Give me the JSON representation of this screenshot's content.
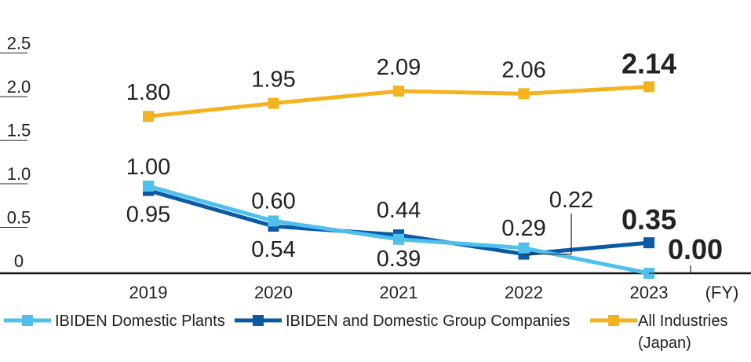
{
  "chart_data": {
    "type": "line",
    "categories": [
      "2019",
      "2020",
      "2021",
      "2022",
      "2023"
    ],
    "x_unit": "(FY)",
    "ylim": [
      0,
      2.5
    ],
    "yticks": [
      "0",
      "0.5",
      "1.0",
      "1.5",
      "2.0",
      "2.5"
    ],
    "grid": false,
    "legend_position": "bottom",
    "series": [
      {
        "name": "IBIDEN Domestic Plants",
        "color": "#4fc0ee",
        "values": [
          1.0,
          0.6,
          0.39,
          0.29,
          0.0
        ],
        "labels": [
          "1.00",
          "0.60",
          "0.39",
          "0.29",
          "0.00"
        ]
      },
      {
        "name": "IBIDEN and Domestic Group Companies",
        "color": "#0b5aa6",
        "values": [
          0.95,
          0.54,
          0.44,
          0.22,
          0.35
        ],
        "labels": [
          "0.95",
          "0.54",
          "0.44",
          "0.22",
          "0.35"
        ]
      },
      {
        "name": "All Industries",
        "name_line2": "(Japan)",
        "color": "#f5b21f",
        "values": [
          1.8,
          1.95,
          2.09,
          2.06,
          2.14
        ],
        "labels": [
          "1.80",
          "1.95",
          "2.09",
          "2.06",
          "2.14"
        ]
      }
    ]
  }
}
